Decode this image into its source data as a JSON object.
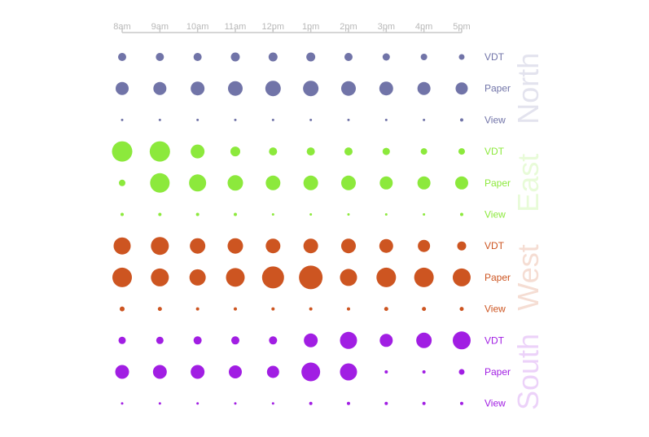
{
  "chart_data": {
    "type": "scatter",
    "x": [
      "8am",
      "9am",
      "10am",
      "11am",
      "12pm",
      "1pm",
      "2pm",
      "3pm",
      "4pm",
      "5pm"
    ],
    "grid": false,
    "groups": [
      {
        "name": "North",
        "color": "#7174a8",
        "series": [
          {
            "name": "VDT",
            "values": [
              10,
              10,
              10,
              11,
              11,
              11,
              10,
              9,
              8,
              7
            ]
          },
          {
            "name": "Paper",
            "values": [
              16,
              16,
              17,
              18,
              19,
              19,
              18,
              17,
              16,
              15
            ]
          },
          {
            "name": "View",
            "values": [
              3,
              3,
              3,
              3,
              3,
              3,
              3,
              3,
              3,
              4
            ]
          }
        ]
      },
      {
        "name": "East",
        "color": "#8ce93c",
        "series": [
          {
            "name": "VDT",
            "values": [
              25,
              25,
              17,
              12,
              10,
              10,
              10,
              9,
              8,
              8
            ]
          },
          {
            "name": "Paper",
            "values": [
              8,
              24,
              21,
              19,
              18,
              18,
              18,
              16,
              16,
              16
            ]
          },
          {
            "name": "View",
            "values": [
              4,
              4,
              4,
              4,
              3,
              3,
              3,
              3,
              3,
              4
            ]
          }
        ]
      },
      {
        "name": "West",
        "color": "#cd5521",
        "series": [
          {
            "name": "VDT",
            "values": [
              21,
              22,
              19,
              19,
              18,
              18,
              18,
              17,
              15,
              11
            ]
          },
          {
            "name": "Paper",
            "values": [
              24,
              22,
              20,
              23,
              27,
              29,
              21,
              24,
              24,
              22
            ]
          },
          {
            "name": "View",
            "values": [
              6,
              5,
              4,
              4,
              4,
              4,
              4,
              5,
              5,
              5
            ]
          }
        ]
      },
      {
        "name": "South",
        "color": "#a11ee3",
        "series": [
          {
            "name": "VDT",
            "values": [
              9,
              9,
              10,
              10,
              10,
              17,
              21,
              16,
              19,
              22
            ]
          },
          {
            "name": "Paper",
            "values": [
              17,
              17,
              17,
              16,
              15,
              23,
              21,
              4,
              4,
              7
            ]
          },
          {
            "name": "View",
            "values": [
              3,
              3,
              3,
              3,
              3,
              4,
              4,
              4,
              4,
              4
            ]
          }
        ]
      }
    ]
  }
}
